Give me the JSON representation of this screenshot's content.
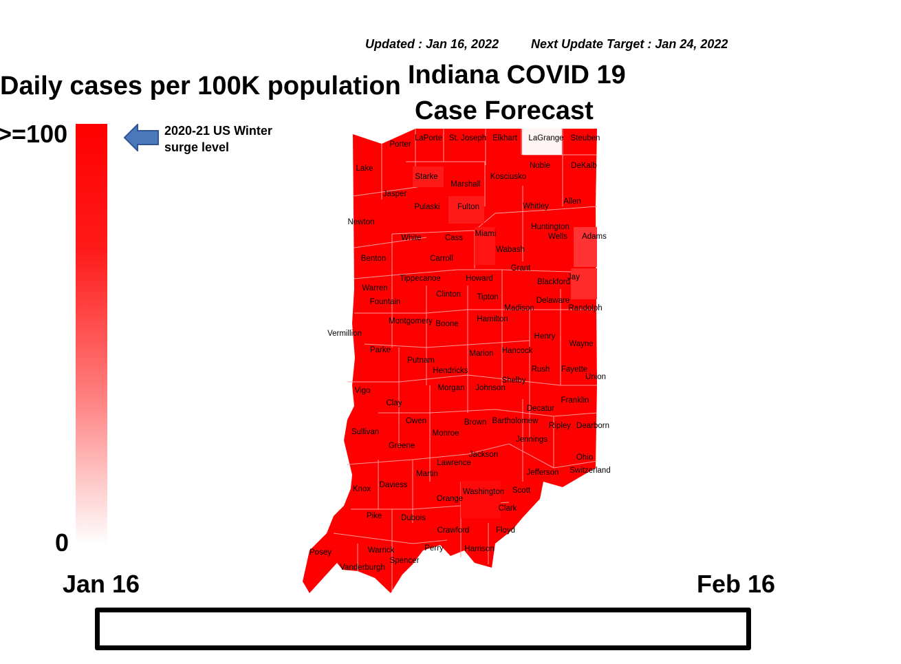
{
  "header": {
    "updated": "Updated : Jan 16, 2022",
    "next_update": "Next Update Target : Jan 24, 2022",
    "title_line1": "Indiana COVID 19",
    "title_line2": "Case Forecast"
  },
  "legend": {
    "title": "Daily cases per 100K population",
    "max_label": ">=100",
    "min_label": "0",
    "min_value": 0,
    "max_value": 100,
    "arrow_label_line1": "2020-21 US Winter",
    "arrow_label_line2": "surge level",
    "arrow_color": "#4a78b8",
    "scale_colors": [
      "#ffffff",
      "#ff0000"
    ]
  },
  "timeline": {
    "start_label": "Jan 16",
    "end_label": "Feb 16"
  },
  "map": {
    "base_color": "#ff0000",
    "border_color": "#ff9999",
    "counties": [
      {
        "name": "Porter",
        "color": "#ff0000"
      },
      {
        "name": "LaPorte",
        "color": "#ff0000"
      },
      {
        "name": "St. Joseph",
        "color": "#ff0000"
      },
      {
        "name": "Elkhart",
        "color": "#ff0000"
      },
      {
        "name": "LaGrange",
        "color": "#fff5f5"
      },
      {
        "name": "Steuben",
        "color": "#ff0000"
      },
      {
        "name": "Lake",
        "color": "#ff0000"
      },
      {
        "name": "Noble",
        "color": "#ff0000"
      },
      {
        "name": "DeKalb",
        "color": "#ff0000"
      },
      {
        "name": "Starke",
        "color": "#ff1a1a"
      },
      {
        "name": "Kosciusko",
        "color": "#ff0000"
      },
      {
        "name": "Marshall",
        "color": "#ff0000"
      },
      {
        "name": "Jasper",
        "color": "#ff0000"
      },
      {
        "name": "Pulaski",
        "color": "#ff0000"
      },
      {
        "name": "Fulton",
        "color": "#ff1a1a"
      },
      {
        "name": "Whitley",
        "color": "#ff0000"
      },
      {
        "name": "Allen",
        "color": "#ff0000"
      },
      {
        "name": "Newton",
        "color": "#ff0000"
      },
      {
        "name": "Huntington",
        "color": "#ff0000"
      },
      {
        "name": "Miami",
        "color": "#ff1414"
      },
      {
        "name": "White",
        "color": "#ff0000"
      },
      {
        "name": "Cass",
        "color": "#ff0000"
      },
      {
        "name": "Wells",
        "color": "#ff0000"
      },
      {
        "name": "Adams",
        "color": "#ff3333"
      },
      {
        "name": "Wabash",
        "color": "#ff0000"
      },
      {
        "name": "Benton",
        "color": "#ff0000"
      },
      {
        "name": "Carroll",
        "color": "#ff0000"
      },
      {
        "name": "Grant",
        "color": "#ff0000"
      },
      {
        "name": "Tippecanoe",
        "color": "#ff0000"
      },
      {
        "name": "Howard",
        "color": "#ff0000"
      },
      {
        "name": "Blackford",
        "color": "#ff0000"
      },
      {
        "name": "Jay",
        "color": "#ff2b2b"
      },
      {
        "name": "Warren",
        "color": "#ff0000"
      },
      {
        "name": "Clinton",
        "color": "#ff0000"
      },
      {
        "name": "Tipton",
        "color": "#ff0000"
      },
      {
        "name": "Fountain",
        "color": "#ff0000"
      },
      {
        "name": "Delaware",
        "color": "#ff0000"
      },
      {
        "name": "Madison",
        "color": "#ff0000"
      },
      {
        "name": "Randolph",
        "color": "#ff0000"
      },
      {
        "name": "Montgomery",
        "color": "#ff0000"
      },
      {
        "name": "Boone",
        "color": "#ff0000"
      },
      {
        "name": "Hamilton",
        "color": "#ff0000"
      },
      {
        "name": "Vermillion",
        "color": "#ff0000"
      },
      {
        "name": "Henry",
        "color": "#ff0000"
      },
      {
        "name": "Wayne",
        "color": "#ff0000"
      },
      {
        "name": "Parke",
        "color": "#ff0000"
      },
      {
        "name": "Marion",
        "color": "#ff0000"
      },
      {
        "name": "Hancock",
        "color": "#ff0000"
      },
      {
        "name": "Putnam",
        "color": "#ff0000"
      },
      {
        "name": "Hendricks",
        "color": "#ff0000"
      },
      {
        "name": "Rush",
        "color": "#ff0000"
      },
      {
        "name": "Fayette",
        "color": "#ff0000"
      },
      {
        "name": "Union",
        "color": "#ff0000"
      },
      {
        "name": "Shelby",
        "color": "#ff0000"
      },
      {
        "name": "Morgan",
        "color": "#ff0000"
      },
      {
        "name": "Johnson",
        "color": "#ff0000"
      },
      {
        "name": "Vigo",
        "color": "#ff0000"
      },
      {
        "name": "Clay",
        "color": "#ff0000"
      },
      {
        "name": "Franklin",
        "color": "#ff0000"
      },
      {
        "name": "Decatur",
        "color": "#ff0000"
      },
      {
        "name": "Owen",
        "color": "#ff0000"
      },
      {
        "name": "Brown",
        "color": "#ff0000"
      },
      {
        "name": "Bartholomew",
        "color": "#ff0000"
      },
      {
        "name": "Ripley",
        "color": "#ff0000"
      },
      {
        "name": "Dearborn",
        "color": "#ff0000"
      },
      {
        "name": "Sullivan",
        "color": "#ff0000"
      },
      {
        "name": "Monroe",
        "color": "#ff0000"
      },
      {
        "name": "Jennings",
        "color": "#ff0000"
      },
      {
        "name": "Greene",
        "color": "#ff0000"
      },
      {
        "name": "Jackson",
        "color": "#ff0000"
      },
      {
        "name": "Ohio",
        "color": "#ff0000"
      },
      {
        "name": "Lawrence",
        "color": "#ff0000"
      },
      {
        "name": "Jefferson",
        "color": "#ff0000"
      },
      {
        "name": "Switzerland",
        "color": "#ff0000"
      },
      {
        "name": "Martin",
        "color": "#ff0000"
      },
      {
        "name": "Daviess",
        "color": "#ff0000"
      },
      {
        "name": "Knox",
        "color": "#ff0000"
      },
      {
        "name": "Washington",
        "color": "#ff0a0a"
      },
      {
        "name": "Scott",
        "color": "#ff0000"
      },
      {
        "name": "Orange",
        "color": "#ff0000"
      },
      {
        "name": "Clark",
        "color": "#ff0000"
      },
      {
        "name": "Pike",
        "color": "#ff0000"
      },
      {
        "name": "Dubois",
        "color": "#ff0000"
      },
      {
        "name": "Crawford",
        "color": "#ff0000"
      },
      {
        "name": "Floyd",
        "color": "#ff0000"
      },
      {
        "name": "Posey",
        "color": "#ff0000"
      },
      {
        "name": "Warrick",
        "color": "#ff0000"
      },
      {
        "name": "Perry",
        "color": "#ff0000"
      },
      {
        "name": "Harrison",
        "color": "#ff0000"
      },
      {
        "name": "Vanderburgh",
        "color": "#ff0000"
      },
      {
        "name": "Spencer",
        "color": "#ff0000"
      }
    ]
  }
}
